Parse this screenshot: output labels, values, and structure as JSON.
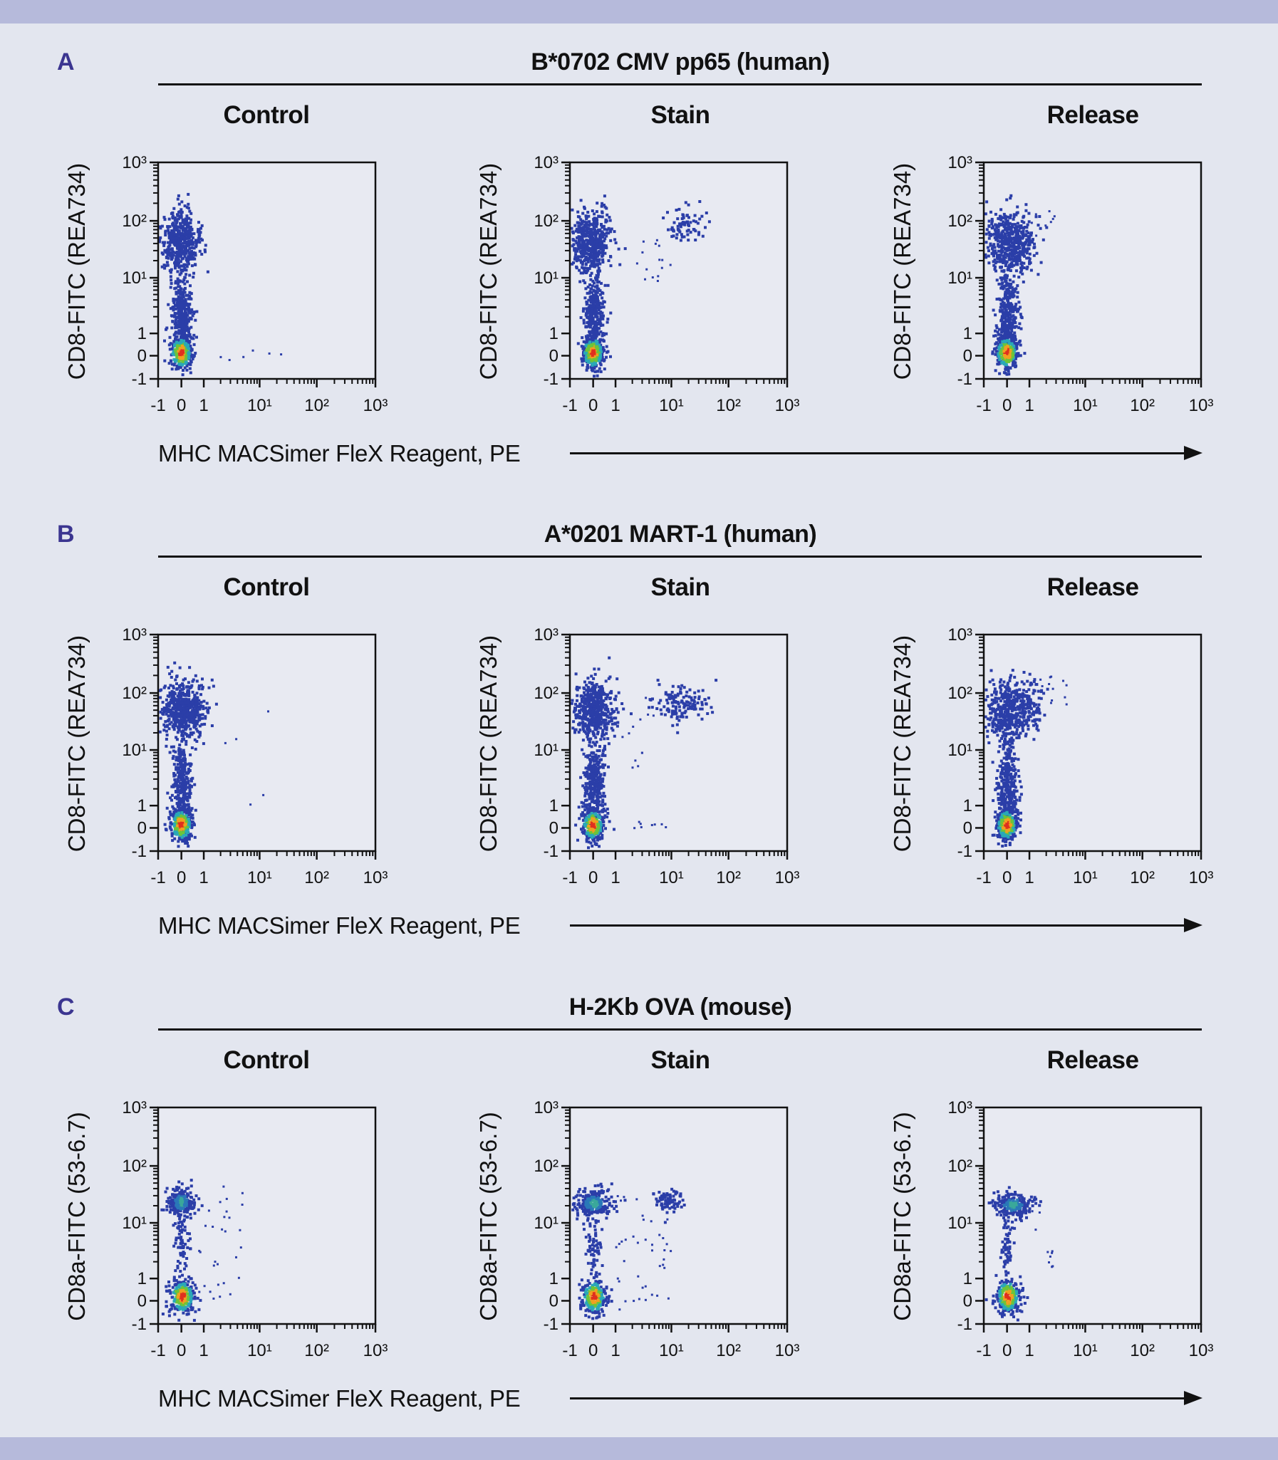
{
  "colors": {
    "background": "#e3e6ef",
    "band": "#b6badb",
    "panel_letter": "#3b3590",
    "events": "#2b3ea8"
  },
  "column_titles": [
    "Control",
    "Stain",
    "Release"
  ],
  "x_axis_label": "MHC MACSimer FleX Reagent, PE",
  "chart_data": [
    {
      "type": "scatter",
      "panel": "A",
      "title": "B*0702 CMV pp65 (human)",
      "ylabel": "CD8-FITC (REA734)",
      "xlabel": "MHC MACSimer FleX Reagent, PE",
      "scale": "biexponential",
      "xlim": [
        -1,
        1000
      ],
      "ylim": [
        -1,
        1000
      ],
      "x_ticks": [
        "-1",
        "0",
        "1",
        "10¹",
        "10²",
        "10³"
      ],
      "y_ticks": [
        "-1",
        "0",
        "1",
        "10¹",
        "10²",
        "10³"
      ],
      "plots": [
        {
          "name": "Control",
          "populations": [
            {
              "x": [
                -0.9,
                0.8
              ],
              "y": [
                12,
                150
              ],
              "n": 500
            },
            {
              "x": [
                -0.4,
                0.5
              ],
              "y": [
                -0.3,
                12
              ],
              "n": 350
            },
            {
              "x": [
                -0.5,
                0.5
              ],
              "y": [
                -0.6,
                0.9
              ],
              "n": 260,
              "hot": true
            },
            {
              "x": [
                1.5,
                30
              ],
              "y": [
                -0.2,
                0.4
              ],
              "n": 6,
              "sparse": true
            }
          ]
        },
        {
          "name": "Stain",
          "populations": [
            {
              "x": [
                -0.9,
                0.8
              ],
              "y": [
                12,
                150
              ],
              "n": 500
            },
            {
              "x": [
                -0.4,
                0.5
              ],
              "y": [
                -0.3,
                12
              ],
              "n": 350
            },
            {
              "x": [
                -0.5,
                0.5
              ],
              "y": [
                -0.6,
                0.9
              ],
              "n": 260,
              "hot": true
            },
            {
              "x": [
                8,
                40
              ],
              "y": [
                40,
                160
              ],
              "n": 70
            },
            {
              "x": [
                2,
                10
              ],
              "y": [
                8,
                60
              ],
              "n": 15,
              "sparse": true
            }
          ]
        },
        {
          "name": "Release",
          "populations": [
            {
              "x": [
                -0.9,
                1.2
              ],
              "y": [
                12,
                150
              ],
              "n": 520
            },
            {
              "x": [
                -0.4,
                0.5
              ],
              "y": [
                -0.3,
                12
              ],
              "n": 350
            },
            {
              "x": [
                -0.5,
                0.5
              ],
              "y": [
                -0.6,
                0.9
              ],
              "n": 260,
              "hot": true
            },
            {
              "x": [
                1,
                3
              ],
              "y": [
                40,
                150
              ],
              "n": 8,
              "sparse": true
            }
          ]
        }
      ]
    },
    {
      "type": "scatter",
      "panel": "B",
      "title": "A*0201 MART-1 (human)",
      "ylabel": "CD8-FITC (REA734)",
      "xlabel": "MHC MACSimer FleX Reagent, PE",
      "scale": "biexponential",
      "xlim": [
        -1,
        1000
      ],
      "ylim": [
        -1,
        1000
      ],
      "x_ticks": [
        "-1",
        "0",
        "1",
        "10¹",
        "10²",
        "10³"
      ],
      "y_ticks": [
        "-1",
        "0",
        "1",
        "10¹",
        "10²",
        "10³"
      ],
      "plots": [
        {
          "name": "Control",
          "populations": [
            {
              "x": [
                -0.8,
                1.0
              ],
              "y": [
                15,
                170
              ],
              "n": 520
            },
            {
              "x": [
                -0.4,
                0.5
              ],
              "y": [
                -0.3,
                15
              ],
              "n": 350
            },
            {
              "x": [
                -0.5,
                0.5
              ],
              "y": [
                -0.6,
                0.9
              ],
              "n": 260,
              "hot": true
            },
            {
              "x": [
                1.5,
                20
              ],
              "y": [
                1,
                60
              ],
              "n": 5,
              "sparse": true
            }
          ]
        },
        {
          "name": "Stain",
          "populations": [
            {
              "x": [
                -0.8,
                1.0
              ],
              "y": [
                15,
                170
              ],
              "n": 520
            },
            {
              "x": [
                -0.4,
                0.5
              ],
              "y": [
                -0.3,
                15
              ],
              "n": 350
            },
            {
              "x": [
                -0.5,
                0.5
              ],
              "y": [
                -0.6,
                0.9
              ],
              "n": 260,
              "hot": true
            },
            {
              "x": [
                5,
                50
              ],
              "y": [
                30,
                130
              ],
              "n": 130
            },
            {
              "x": [
                2,
                8
              ],
              "y": [
                -0.1,
                0.3
              ],
              "n": 8,
              "sparse": true
            },
            {
              "x": [
                1,
                5
              ],
              "y": [
                3,
                100
              ],
              "n": 12,
              "sparse": true
            }
          ]
        },
        {
          "name": "Release",
          "populations": [
            {
              "x": [
                -0.9,
                1.5
              ],
              "y": [
                15,
                170
              ],
              "n": 540
            },
            {
              "x": [
                -0.4,
                0.5
              ],
              "y": [
                -0.3,
                15
              ],
              "n": 350
            },
            {
              "x": [
                -0.5,
                0.5
              ],
              "y": [
                -0.6,
                0.9
              ],
              "n": 260,
              "hot": true
            },
            {
              "x": [
                1.5,
                5
              ],
              "y": [
                60,
                200
              ],
              "n": 12,
              "sparse": true
            }
          ]
        }
      ]
    },
    {
      "type": "scatter",
      "panel": "C",
      "title": "H-2Kb OVA (mouse)",
      "ylabel": "CD8a-FITC (53-6.7)",
      "xlabel": "MHC MACSimer FleX Reagent, PE",
      "scale": "biexponential",
      "xlim": [
        -1,
        1000
      ],
      "ylim": [
        -1,
        1000
      ],
      "x_ticks": [
        "-1",
        "0",
        "1",
        "10¹",
        "10²",
        "10³"
      ],
      "y_ticks": [
        "-1",
        "0",
        "1",
        "10¹",
        "10²",
        "10³"
      ],
      "plots": [
        {
          "name": "Control",
          "populations": [
            {
              "x": [
                -0.6,
                0.6
              ],
              "y": [
                12,
                45
              ],
              "n": 220,
              "hot": "mild"
            },
            {
              "x": [
                -0.3,
                0.4
              ],
              "y": [
                1,
                12
              ],
              "n": 60
            },
            {
              "x": [
                -0.5,
                0.6
              ],
              "y": [
                -0.6,
                1.0
              ],
              "n": 260,
              "hot": true
            },
            {
              "x": [
                0.6,
                5
              ],
              "y": [
                -0.5,
                60
              ],
              "n": 30,
              "sparse": true
            }
          ]
        },
        {
          "name": "Stain",
          "populations": [
            {
              "x": [
                -0.8,
                0.9
              ],
              "y": [
                12,
                40
              ],
              "n": 230,
              "hot": "mild"
            },
            {
              "x": [
                -0.3,
                0.4
              ],
              "y": [
                1,
                12
              ],
              "n": 60
            },
            {
              "x": [
                -0.5,
                0.6
              ],
              "y": [
                -0.6,
                1.0
              ],
              "n": 260,
              "hot": true
            },
            {
              "x": [
                5,
                15
              ],
              "y": [
                15,
                35
              ],
              "n": 80
            },
            {
              "x": [
                1,
                10
              ],
              "y": [
                -0.5,
                30
              ],
              "n": 40,
              "sparse": true
            }
          ]
        },
        {
          "name": "Release",
          "populations": [
            {
              "x": [
                -0.6,
                1.2
              ],
              "y": [
                12,
                35
              ],
              "n": 230,
              "hot": "mild"
            },
            {
              "x": [
                -0.3,
                0.4
              ],
              "y": [
                1,
                12
              ],
              "n": 60
            },
            {
              "x": [
                -0.5,
                0.6
              ],
              "y": [
                -0.6,
                1.0
              ],
              "n": 260,
              "hot": true
            },
            {
              "x": [
                1,
                3
              ],
              "y": [
                1,
                20
              ],
              "n": 10,
              "sparse": true
            }
          ]
        }
      ]
    }
  ]
}
